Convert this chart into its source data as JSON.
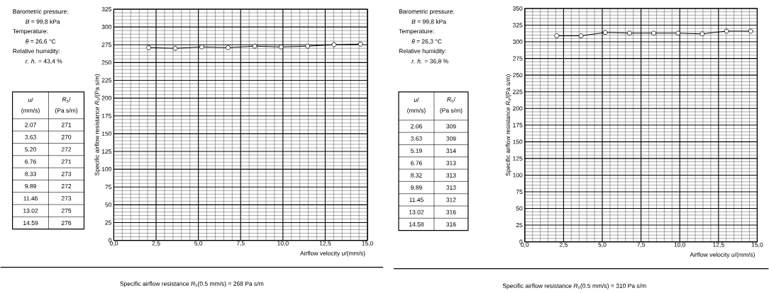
{
  "chart_data": [
    {
      "type": "line",
      "xlabel": "Airflow velocity *u*/(mm/s)",
      "ylabel": "Specific airflow resistance *R*$_{s}$/(Pa s/m)",
      "x": [
        2.07,
        3.63,
        5.2,
        6.76,
        8.33,
        9.89,
        11.46,
        13.02,
        14.59
      ],
      "values": [
        271,
        270,
        272,
        271,
        273,
        272,
        273,
        275,
        276
      ],
      "color": "#000000",
      "marker": "circle",
      "line_style": "solid",
      "grid": true,
      "xlim": [
        0,
        15
      ],
      "xticks": [
        {
          "value": 0,
          "label": "0,0"
        },
        {
          "value": 2.5,
          "label": "2,5"
        },
        {
          "value": 5,
          "label": "5,0"
        },
        {
          "value": 7.5,
          "label": "7,5"
        },
        {
          "value": 10,
          "label": "10,0"
        },
        {
          "value": 12.5,
          "label": "12,5"
        },
        {
          "value": 15,
          "label": "15,0"
        }
      ],
      "ylim": [
        0,
        325
      ],
      "yticks": [
        0,
        25,
        50,
        75,
        100,
        125,
        150,
        175,
        200,
        225,
        250,
        275,
        300,
        325
      ],
      "annotations": [
        "Barometric pressure:",
        "*B* = 99,8 kPa",
        "Temperature:",
        "*θ* = 26,6 °C",
        "Relative humidity:",
        "*r. h.* = 43,4 %",
        "*u*/",
        "(mm/s)",
        "*R*$_{s}$/",
        "(Pa s/m)",
        "Specific airflow resistance *R*$_{s}$(0.5 mm/s) = 268 Pa s/m",
        "2.07",
        "271",
        "3.63",
        "270",
        "5.20",
        "272",
        "6.76",
        "271",
        "8.33",
        "273",
        "9.89",
        "272",
        "11.46",
        "273",
        "13.02",
        "275",
        "14.59",
        "276"
      ]
    },
    {
      "type": "line",
      "xlabel": "Airflow velocity *u*/(mm/s)",
      "ylabel": "Specific airflow resistance *R*$_{s}$/(Pa s/m)",
      "x": [
        2.06,
        3.63,
        5.19,
        6.76,
        8.32,
        9.89,
        11.45,
        13.02,
        14.58
      ],
      "values": [
        309,
        309,
        314,
        313,
        313,
        313,
        312,
        316,
        316
      ],
      "color": "#000000",
      "marker": "circle",
      "line_style": "solid",
      "grid": true,
      "xlim": [
        0,
        15
      ],
      "xticks": [
        {
          "value": 0,
          "label": "0,0"
        },
        {
          "value": 2.5,
          "label": "2,5"
        },
        {
          "value": 5,
          "label": "5,0"
        },
        {
          "value": 7.5,
          "label": "7,5"
        },
        {
          "value": 10,
          "label": "10,0"
        },
        {
          "value": 12.5,
          "label": "12,5"
        },
        {
          "value": 15,
          "label": "15,0"
        }
      ],
      "ylim": [
        0,
        350
      ],
      "yticks": [
        0,
        25,
        50,
        75,
        100,
        125,
        150,
        175,
        200,
        225,
        250,
        275,
        300,
        325,
        350
      ],
      "annotations": [
        "Barometric pressure:",
        "*B* = 99,8 kPa",
        "Temperature:",
        "*θ* = 26,3 °C",
        "Relative humidity:",
        "*r. h.* = 36,8 %",
        "*u*/",
        "(mm/s)",
        "*R*$_{s}$/",
        "(Pa s/m)",
        "Specific airflow resistance *R*$_{s}$(0.5 mm/s) = 310 Pa s/m",
        "2.06",
        "309",
        "3.63",
        "309",
        "5.19",
        "314",
        "6.76",
        "313",
        "8.32",
        "313",
        "9.89",
        "313",
        "11.45",
        "312",
        "13.02",
        "316",
        "14.58",
        "316"
      ]
    }
  ]
}
